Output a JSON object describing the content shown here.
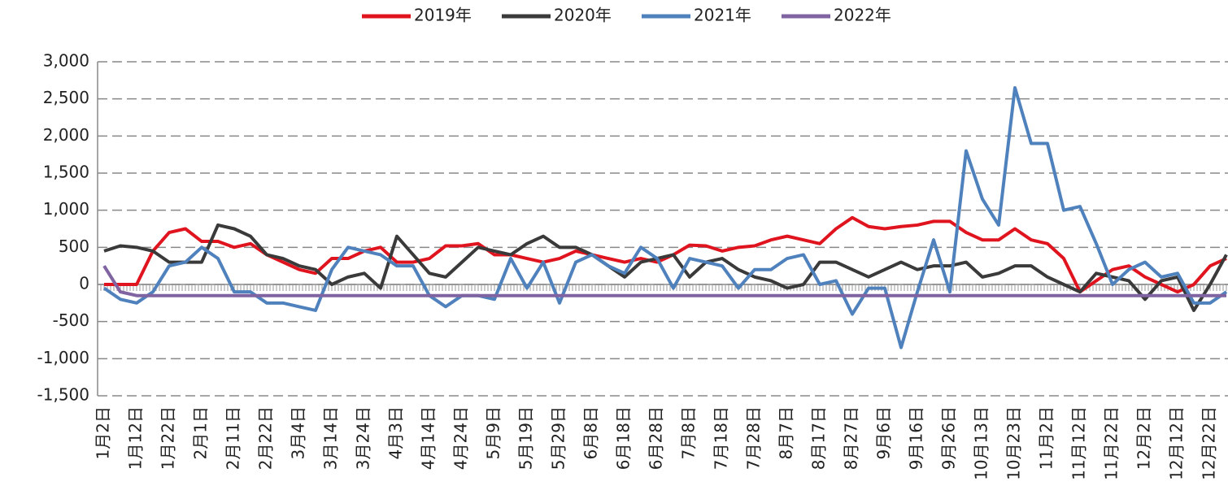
{
  "chart_data": {
    "type": "line",
    "categories": [
      "1月2日",
      null,
      "1月12日",
      null,
      "1月22日",
      null,
      "2月1日",
      null,
      "2月11日",
      null,
      "2月22日",
      null,
      "3月4日",
      null,
      "3月14日",
      null,
      "3月24日",
      null,
      "4月3日",
      null,
      "4月14日",
      null,
      "4月24日",
      null,
      "5月9日",
      null,
      "5月19日",
      null,
      "5月29日",
      null,
      "6月8日",
      null,
      "6月18日",
      null,
      "6月28日",
      null,
      "7月8日",
      null,
      "7月18日",
      null,
      "7月28日",
      null,
      "8月7日",
      null,
      "8月17日",
      null,
      "8月27日",
      null,
      "9月6日",
      null,
      "9月16日",
      null,
      "9月26日",
      null,
      "10月13日",
      null,
      "10月23日",
      null,
      "11月2日",
      null,
      "11月12日",
      null,
      "11月22日",
      null,
      "12月2日",
      null,
      "12月12日",
      null,
      "12月22日",
      null
    ],
    "series": [
      {
        "name": "2019年",
        "color": "#e0141e",
        "values": [
          0,
          0,
          0,
          450,
          700,
          750,
          580,
          580,
          500,
          550,
          400,
          300,
          200,
          150,
          350,
          350,
          450,
          500,
          300,
          300,
          350,
          520,
          520,
          550,
          400,
          400,
          350,
          300,
          350,
          450,
          400,
          350,
          300,
          350,
          300,
          400,
          530,
          520,
          450,
          500,
          520,
          600,
          650,
          600,
          550,
          750,
          900,
          780,
          750,
          780,
          800,
          850,
          850,
          700,
          600,
          600,
          750,
          600,
          550,
          350,
          -100,
          50,
          200,
          250,
          100,
          0,
          -100,
          0,
          250,
          350
        ]
      },
      {
        "name": "2020年",
        "color": "#3a3a3a",
        "values": [
          450,
          520,
          500,
          450,
          300,
          300,
          300,
          800,
          750,
          650,
          400,
          350,
          250,
          200,
          0,
          100,
          150,
          -50,
          650,
          400,
          150,
          100,
          300,
          500,
          450,
          400,
          550,
          650,
          500,
          500,
          400,
          250,
          100,
          300,
          350,
          400,
          100,
          300,
          350,
          200,
          100,
          50,
          -50,
          0,
          300,
          300,
          200,
          100,
          200,
          300,
          200,
          250,
          250,
          300,
          100,
          150,
          250,
          250,
          100,
          0,
          -100,
          150,
          100,
          50,
          -200,
          50,
          100,
          -350,
          0,
          400
        ]
      },
      {
        "name": "2021年",
        "color": "#4f81bd",
        "values": [
          -50,
          -200,
          -250,
          -100,
          250,
          300,
          500,
          350,
          -100,
          -100,
          -250,
          -250,
          -300,
          -350,
          200,
          500,
          450,
          400,
          250,
          250,
          -150,
          -300,
          -150,
          -150,
          -200,
          350,
          -50,
          300,
          -250,
          300,
          400,
          250,
          150,
          500,
          350,
          -50,
          350,
          300,
          250,
          -50,
          200,
          200,
          350,
          400,
          0,
          50,
          -400,
          -50,
          -50,
          -850,
          -100,
          600,
          -100,
          1800,
          1150,
          800,
          2650,
          1900,
          1900,
          1000,
          1050,
          550,
          0,
          200,
          300,
          100,
          150,
          -250,
          -250,
          -100
        ]
      },
      {
        "name": "2022年",
        "color": "#8064a2",
        "values": [
          250,
          -100,
          -150,
          -150,
          -150,
          -150,
          -150,
          -150,
          -150,
          -150,
          -150,
          -150,
          -150,
          -150,
          -150,
          -150,
          -150,
          -150,
          -150,
          -150,
          -150,
          -150,
          -150,
          -150,
          -150,
          -150,
          -150,
          -150,
          -150,
          -150,
          -150,
          -150,
          -150,
          -150,
          -150,
          -150,
          -150,
          -150,
          -150,
          -150,
          -150,
          -150,
          -150,
          -150,
          -150,
          -150,
          -150,
          -150,
          -150,
          -150,
          -150,
          -150,
          -150,
          -150,
          -150,
          -150,
          -150,
          -150,
          -150,
          -150,
          -150,
          -150,
          -150,
          -150,
          -150,
          -150,
          -150,
          -150,
          -150,
          -150
        ]
      }
    ],
    "ylim": [
      -1500,
      3000
    ],
    "yticks": [
      {
        "value": -1500,
        "label": "-1,500"
      },
      {
        "value": -1000,
        "label": "-1,000"
      },
      -500,
      0,
      500,
      {
        "value": 1000,
        "label": "1,000"
      },
      {
        "value": 1500,
        "label": "1,500"
      },
      {
        "value": 2000,
        "label": "2,000"
      },
      {
        "value": 2500,
        "label": "2,500"
      },
      {
        "value": 3000,
        "label": "3,000"
      }
    ],
    "grid": true,
    "legend": "top"
  }
}
